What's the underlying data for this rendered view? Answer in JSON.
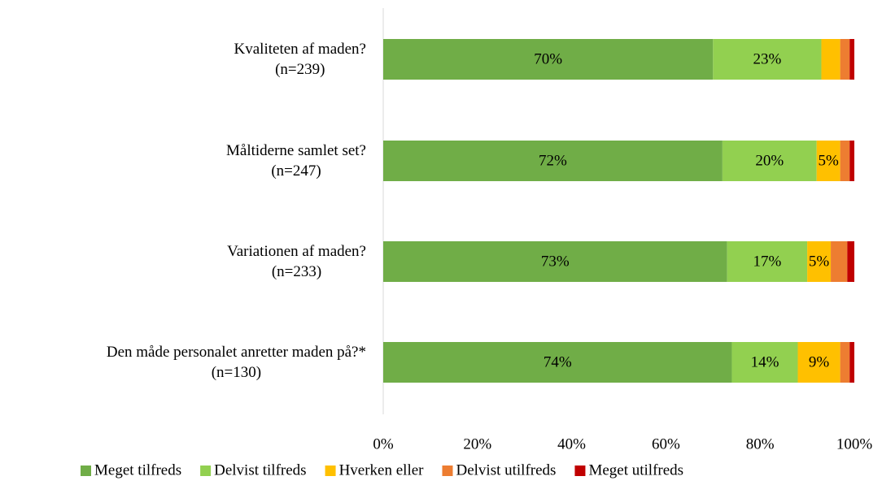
{
  "chart_data": {
    "type": "stacked-bar-horizontal",
    "categories": [
      "Kvaliteten af maden?\n(n=239)",
      "Måltiderne samlet set?\n(n=247)",
      "Variationen af maden?\n(n=233)",
      "Den måde personalet anretter maden på?*\n(n=130)"
    ],
    "series": [
      {
        "name": "Meget tilfreds",
        "color": "#70ad47",
        "values": [
          70,
          72,
          73,
          74
        ],
        "value_labels": [
          "70%",
          "72%",
          "73%",
          "74%"
        ]
      },
      {
        "name": "Delvist tilfreds",
        "color": "#92d050",
        "values": [
          23,
          20,
          17,
          14
        ],
        "value_labels": [
          "23%",
          "20%",
          "17%",
          "14%"
        ]
      },
      {
        "name": "Hverken eller",
        "color": "#ffc000",
        "values": [
          4,
          5,
          5,
          9
        ],
        "value_labels": [
          null,
          "5%",
          "5%",
          "9%"
        ]
      },
      {
        "name": "Delvist utilfreds",
        "color": "#ed7d31",
        "values": [
          2,
          2,
          3.5,
          2
        ]
      },
      {
        "name": "Meget utilfreds",
        "color": "#c00000",
        "values": [
          1,
          1,
          1.5,
          1
        ]
      }
    ],
    "xlim": [
      0,
      100
    ],
    "xticks": [
      {
        "value": 0,
        "label": "0%"
      },
      {
        "value": 20,
        "label": "20%"
      },
      {
        "value": 40,
        "label": "40%"
      },
      {
        "value": 60,
        "label": "60%"
      },
      {
        "value": 80,
        "label": "80%"
      },
      {
        "value": 100,
        "label": "100%"
      }
    ],
    "legend": "bottom"
  }
}
